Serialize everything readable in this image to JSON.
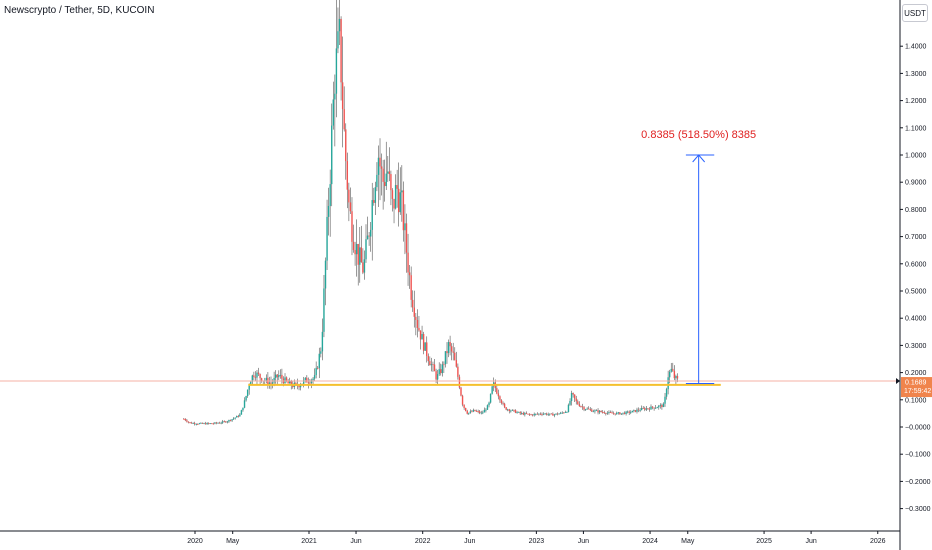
{
  "header": {
    "symbol_title": "Newscrypto / Tether, 5D, KUCOIN",
    "currency": "USDT"
  },
  "colors": {
    "up": "#26a69a",
    "down": "#ef5350",
    "wick": "#555555",
    "support": "#f5c02e",
    "current_price_line": "#f6b2a6",
    "price_tag_bg": "#f0844c",
    "measure_arrow": "#2962ff",
    "annotation_text": "#e02020"
  },
  "price_tag": {
    "price": "0.1689",
    "countdown": "17:59:42"
  },
  "chart_data": {
    "type": "candlestick",
    "title": "Newscrypto / Tether, 5D, KUCOIN",
    "ylim": [
      -0.34,
      1.53
    ],
    "y_ticks": [
      {
        "value": 1.4,
        "label": "1.4000"
      },
      {
        "value": 1.3,
        "label": "1.3000"
      },
      {
        "value": 1.2,
        "label": "1.2000"
      },
      {
        "value": 1.1,
        "label": "1.1000"
      },
      {
        "value": 1.0,
        "label": "1.0000"
      },
      {
        "value": 0.9,
        "label": "0.9000"
      },
      {
        "value": 0.8,
        "label": "0.8000"
      },
      {
        "value": 0.7,
        "label": "0.7000"
      },
      {
        "value": 0.6,
        "label": "0.6000"
      },
      {
        "value": 0.5,
        "label": "0.5000"
      },
      {
        "value": 0.4,
        "label": "0.4000"
      },
      {
        "value": 0.3,
        "label": "0.3000"
      },
      {
        "value": 0.2,
        "label": "0.2000"
      },
      {
        "value": 0.1,
        "label": "0.1000"
      },
      {
        "value": 0.0,
        "label": "−0.0000"
      },
      {
        "value": -0.1,
        "label": "−0.1000"
      },
      {
        "value": -0.2,
        "label": "−0.2000"
      },
      {
        "value": -0.3,
        "label": "−0.3000"
      }
    ],
    "x_ticks": [
      {
        "date": "2020-01-01",
        "label": "2020"
      },
      {
        "date": "2020-05-01",
        "label": "May"
      },
      {
        "date": "2021-01-01",
        "label": "2021"
      },
      {
        "date": "2021-06-01",
        "label": "Jun"
      },
      {
        "date": "2022-01-01",
        "label": "2022"
      },
      {
        "date": "2022-06-01",
        "label": "Jun"
      },
      {
        "date": "2023-01-01",
        "label": "2023"
      },
      {
        "date": "2023-06-01",
        "label": "Jun"
      },
      {
        "date": "2024-01-01",
        "label": "2024"
      },
      {
        "date": "2024-05-01",
        "label": "May"
      },
      {
        "date": "2025-01-01",
        "label": "2025"
      },
      {
        "date": "2025-06-01",
        "label": "Jun"
      },
      {
        "date": "2026-01-01",
        "label": "2026"
      }
    ],
    "price_path": [
      [
        "2019-11-26",
        0.03
      ],
      [
        "2019-12-15",
        0.015
      ],
      [
        "2020-01-20",
        0.012
      ],
      [
        "2020-03-01",
        0.013
      ],
      [
        "2020-04-10",
        0.02
      ],
      [
        "2020-05-01",
        0.03
      ],
      [
        "2020-05-25",
        0.045
      ],
      [
        "2020-06-10",
        0.1
      ],
      [
        "2020-06-25",
        0.17
      ],
      [
        "2020-07-10",
        0.2
      ],
      [
        "2020-08-01",
        0.18
      ],
      [
        "2020-09-01",
        0.16
      ],
      [
        "2020-09-25",
        0.19
      ],
      [
        "2020-10-25",
        0.16
      ],
      [
        "2020-11-20",
        0.15
      ],
      [
        "2020-12-20",
        0.17
      ],
      [
        "2021-01-20",
        0.18
      ],
      [
        "2021-02-10",
        0.3
      ],
      [
        "2021-02-25",
        0.65
      ],
      [
        "2021-03-10",
        0.95
      ],
      [
        "2021-03-25",
        1.3
      ],
      [
        "2021-04-10",
        1.42
      ],
      [
        "2021-04-25",
        1.05
      ],
      [
        "2021-05-10",
        0.8
      ],
      [
        "2021-05-25",
        0.7
      ],
      [
        "2021-06-10",
        0.62
      ],
      [
        "2021-06-25",
        0.58
      ],
      [
        "2021-07-10",
        0.7
      ],
      [
        "2021-07-25",
        0.85
      ],
      [
        "2021-08-10",
        1.02
      ],
      [
        "2021-08-25",
        0.9
      ],
      [
        "2021-09-10",
        0.95
      ],
      [
        "2021-09-25",
        0.8
      ],
      [
        "2021-10-10",
        0.88
      ],
      [
        "2021-10-25",
        0.82
      ],
      [
        "2021-11-10",
        0.65
      ],
      [
        "2021-11-25",
        0.5
      ],
      [
        "2021-12-15",
        0.38
      ],
      [
        "2022-01-05",
        0.3
      ],
      [
        "2022-01-25",
        0.24
      ],
      [
        "2022-02-15",
        0.18
      ],
      [
        "2022-03-05",
        0.22
      ],
      [
        "2022-03-25",
        0.3
      ],
      [
        "2022-04-10",
        0.26
      ],
      [
        "2022-04-25",
        0.18
      ],
      [
        "2022-05-10",
        0.08
      ],
      [
        "2022-05-25",
        0.05
      ],
      [
        "2022-06-15",
        0.06
      ],
      [
        "2022-07-10",
        0.05
      ],
      [
        "2022-08-01",
        0.08
      ],
      [
        "2022-08-15",
        0.16
      ],
      [
        "2022-09-01",
        0.12
      ],
      [
        "2022-09-20",
        0.07
      ],
      [
        "2022-10-15",
        0.06
      ],
      [
        "2022-11-10",
        0.05
      ],
      [
        "2022-12-15",
        0.045
      ],
      [
        "2023-01-20",
        0.05
      ],
      [
        "2023-02-20",
        0.045
      ],
      [
        "2023-03-20",
        0.05
      ],
      [
        "2023-04-10",
        0.06
      ],
      [
        "2023-04-25",
        0.12
      ],
      [
        "2023-05-10",
        0.09
      ],
      [
        "2023-06-01",
        0.07
      ],
      [
        "2023-07-01",
        0.06
      ],
      [
        "2023-08-01",
        0.055
      ],
      [
        "2023-09-01",
        0.05
      ],
      [
        "2023-10-01",
        0.05
      ],
      [
        "2023-11-01",
        0.055
      ],
      [
        "2023-12-01",
        0.065
      ],
      [
        "2024-01-01",
        0.07
      ],
      [
        "2024-01-25",
        0.075
      ],
      [
        "2024-02-15",
        0.08
      ],
      [
        "2024-02-28",
        0.19
      ],
      [
        "2024-03-10",
        0.21
      ],
      [
        "2024-03-20",
        0.18
      ],
      [
        "2024-03-31",
        0.169
      ]
    ],
    "support_line": {
      "date_start": "2020-06-20",
      "date_end": "2024-08-15",
      "value": 0.155
    },
    "current_price_line": {
      "value": 0.1689
    },
    "measure": {
      "date": "2024-06-05",
      "from_date": "2024-04-25",
      "to_date": "2024-07-25",
      "from_value": 0.16,
      "to_value": 1.0,
      "label": "0.8385 (518.50%) 8385"
    }
  }
}
